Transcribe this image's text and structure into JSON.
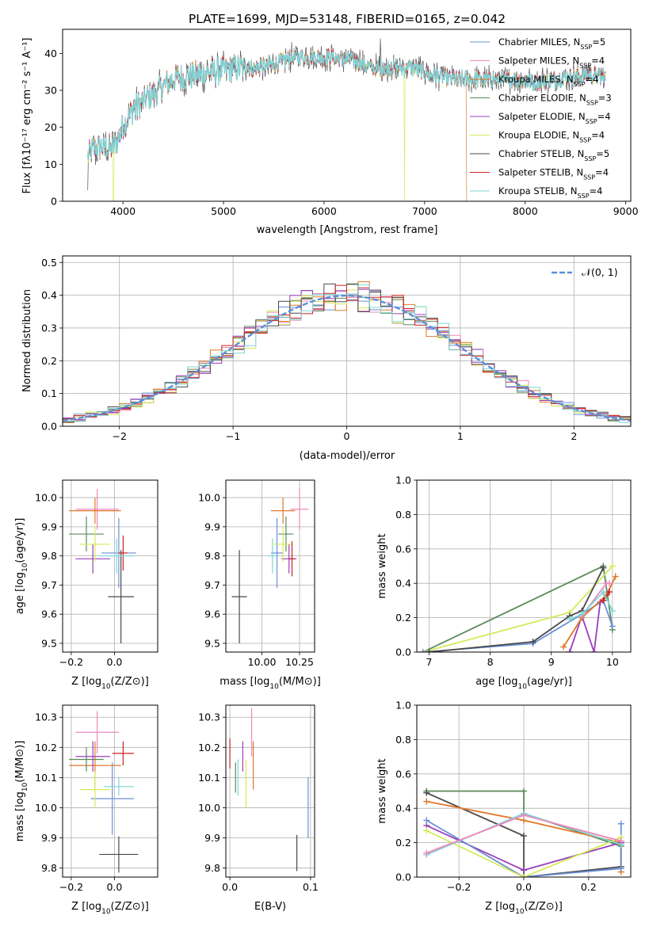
{
  "colors": {
    "chabrier_miles": "#6a8fd6",
    "salpeter_miles": "#ee88bb",
    "kroupa_miles": "#e0782a",
    "chabrier_elodie": "#5a8a5a",
    "salpeter_elodie": "#9a3fba",
    "kroupa_elodie": "#d4ea5a",
    "chabrier_stelib": "#4a4a4a",
    "salpeter_stelib": "#cc2222",
    "kroupa_stelib": "#7ed6d9",
    "normal_curve": "#5b8fd9"
  },
  "chart_data": [
    {
      "id": "spectrum",
      "type": "line",
      "title": "PLATE=1699, MJD=53148, FIBERID=0165, z=0.042",
      "xlabel": "wavelength [Angstrom, rest frame]",
      "ylabel": "Flux [fλ10⁻¹⁷ erg cm⁻² s⁻¹ A⁻¹]",
      "xlim": [
        3400,
        9050
      ],
      "ylim": [
        0,
        46.5
      ],
      "xticks": [
        4000,
        5000,
        6000,
        7000,
        8000,
        9000
      ],
      "yticks": [
        0,
        10,
        20,
        30,
        40
      ],
      "grid": false,
      "legend_position": "upper-right",
      "series": [
        {
          "name": "Chabrier MILES, N_SSP=5",
          "label_main": "Chabrier MILES, N",
          "label_sub": "SSP",
          "label_end": "=5"
        },
        {
          "name": "Salpeter MILES, N_SSP=4",
          "label_main": "Salpeter MILES, N",
          "label_sub": "SSP",
          "label_end": "=4"
        },
        {
          "name": "Kroupa MILES, N_SSP=4",
          "label_main": "Kroupa MILES, N",
          "label_sub": "SSP",
          "label_end": "=4"
        },
        {
          "name": "Chabrier ELODIE, N_SSP=3",
          "label_main": "Chabrier ELODIE, N",
          "label_sub": "SSP",
          "label_end": "=3"
        },
        {
          "name": "Salpeter ELODIE, N_SSP=4",
          "label_main": "Salpeter ELODIE, N",
          "label_sub": "SSP",
          "label_end": "=4"
        },
        {
          "name": "Kroupa ELODIE, N_SSP=4",
          "label_main": "Kroupa ELODIE, N",
          "label_sub": "SSP",
          "label_end": "=4"
        },
        {
          "name": "Chabrier STELIB, N_SSP=5",
          "label_main": "Chabrier STELIB, N",
          "label_sub": "SSP",
          "label_end": "=5"
        },
        {
          "name": "Salpeter STELIB, N_SSP=4",
          "label_main": "Salpeter STELIB, N",
          "label_sub": "SSP",
          "label_end": "=4"
        },
        {
          "name": "Kroupa STELIB, N_SSP=4",
          "label_main": "Kroupa STELIB, N",
          "label_sub": "SSP",
          "label_end": "=4"
        }
      ],
      "continuum": {
        "x": [
          3650,
          3700,
          3800,
          3900,
          4000,
          4100,
          4200,
          4300,
          4400,
          4500,
          4700,
          4900,
          5100,
          5300,
          5500,
          5700,
          5900,
          6100,
          6300,
          6500,
          6700,
          6900,
          7100,
          7300,
          7500,
          7700,
          7900,
          8100,
          8300,
          8500,
          8700,
          8800
        ],
        "y": [
          12,
          14,
          15,
          14,
          20,
          25,
          27,
          29,
          31,
          33,
          34,
          35,
          36,
          36,
          37,
          39,
          39,
          39,
          38,
          36,
          36,
          36,
          34,
          33,
          33,
          33,
          33,
          32,
          33,
          34,
          34,
          33
        ]
      },
      "dropouts": [
        {
          "x": 3905,
          "ymin": 0,
          "series": "kroupa_elodie"
        },
        {
          "x": 6800,
          "ymin": 0,
          "series": "kroupa_elodie"
        },
        {
          "x": 7420,
          "ymin": 0,
          "series": "kroupa_miles"
        }
      ]
    },
    {
      "id": "residuals",
      "type": "line",
      "xlabel": "(data-model)/error",
      "ylabel": "Normed distribution",
      "xlim": [
        -2.5,
        2.5
      ],
      "ylim": [
        0,
        0.52
      ],
      "xticks": [
        -2,
        -1,
        0,
        1,
        2
      ],
      "yticks": [
        0.0,
        0.1,
        0.2,
        0.3,
        0.4,
        0.5
      ],
      "grid": true,
      "legend_position": "upper-right",
      "legend": "𝒩(0, 1)",
      "bin_width": 0.1
    },
    {
      "id": "age_vs_z",
      "type": "scatter",
      "xlabel_main": "Z [log",
      "xlabel_sub": "10",
      "xlabel_end": "(Z/Z⊙)]",
      "ylabel_main": "age  [log",
      "ylabel_sub": "10",
      "ylabel_end": "(age/yr)]",
      "xlim": [
        -0.24,
        0.2
      ],
      "ylim": [
        9.47,
        10.06
      ],
      "xticks": [
        -0.2,
        0.0
      ],
      "yticks": [
        9.5,
        9.6,
        9.7,
        9.8,
        9.9,
        10.0
      ],
      "grid": true,
      "points": [
        {
          "series": "chabrier_miles",
          "x": 0.02,
          "xerr": 0.08,
          "y": 9.81,
          "yerr": 0.12
        },
        {
          "series": "salpeter_miles",
          "x": -0.08,
          "xerr": 0.1,
          "y": 9.96,
          "yerr": 0.07
        },
        {
          "series": "kroupa_miles",
          "x": -0.09,
          "xerr": 0.12,
          "y": 9.955,
          "yerr": 0.045
        },
        {
          "series": "chabrier_elodie",
          "x": -0.13,
          "xerr": 0.08,
          "y": 9.875,
          "yerr": 0.06
        },
        {
          "series": "salpeter_elodie",
          "x": -0.1,
          "xerr": 0.08,
          "y": 9.79,
          "yerr": 0.05
        },
        {
          "series": "kroupa_elodie",
          "x": -0.09,
          "xerr": 0.07,
          "y": 9.84,
          "yerr": 0.06
        },
        {
          "series": "chabrier_stelib",
          "x": 0.03,
          "xerr": 0.06,
          "y": 9.66,
          "yerr": 0.16
        },
        {
          "series": "salpeter_stelib",
          "x": 0.04,
          "xerr": 0.02,
          "y": 9.81,
          "yerr": 0.06
        },
        {
          "series": "kroupa_stelib",
          "x": 0.01,
          "xerr": 0.08,
          "y": 9.8,
          "yerr": 0.06
        }
      ]
    },
    {
      "id": "age_vs_mass",
      "type": "scatter",
      "xlabel_main": "mass [log",
      "xlabel_sub": "10",
      "xlabel_end": "(M/M⊙)]",
      "xlim": [
        9.76,
        10.35
      ],
      "ylim": [
        9.47,
        10.06
      ],
      "xticks": [
        10.0,
        10.25
      ],
      "yticks": [
        9.5,
        9.6,
        9.7,
        9.8,
        9.9,
        10.0
      ],
      "grid": true,
      "points": [
        {
          "series": "chabrier_miles",
          "x": 10.1,
          "xerr": 0.04,
          "y": 9.81,
          "yerr": 0.12
        },
        {
          "series": "salpeter_miles",
          "x": 10.25,
          "xerr": 0.06,
          "y": 9.96,
          "yerr": 0.07
        },
        {
          "series": "kroupa_miles",
          "x": 10.14,
          "xerr": 0.08,
          "y": 9.955,
          "yerr": 0.045
        },
        {
          "series": "chabrier_elodie",
          "x": 10.16,
          "xerr": 0.05,
          "y": 9.875,
          "yerr": 0.06
        },
        {
          "series": "salpeter_elodie",
          "x": 10.18,
          "xerr": 0.05,
          "y": 9.79,
          "yerr": 0.05
        },
        {
          "series": "kroupa_elodie",
          "x": 10.14,
          "xerr": 0.06,
          "y": 9.84,
          "yerr": 0.06
        },
        {
          "series": "chabrier_stelib",
          "x": 9.85,
          "xerr": 0.05,
          "y": 9.66,
          "yerr": 0.16
        },
        {
          "series": "salpeter_stelib",
          "x": 10.2,
          "xerr": 0.02,
          "y": 9.79,
          "yerr": 0.06
        },
        {
          "series": "kroupa_stelib",
          "x": 10.07,
          "xerr": 0.03,
          "y": 9.8,
          "yerr": 0.06
        }
      ]
    },
    {
      "id": "massweight_vs_age",
      "type": "line",
      "xlabel_main": "age  [log",
      "xlabel_sub": "10",
      "xlabel_end": "(age/yr)]",
      "ylabel": "mass weight",
      "xlim": [
        6.8,
        10.3
      ],
      "ylim": [
        0,
        1.0
      ],
      "xticks": [
        7,
        8,
        9,
        10
      ],
      "yticks": [
        0.0,
        0.2,
        0.4,
        0.6,
        0.8,
        1.0
      ],
      "grid": true,
      "series": [
        {
          "series": "chabrier_elodie",
          "x": [
            6.9,
            9.85,
            10.0
          ],
          "y": [
            0.0,
            0.5,
            0.13
          ]
        },
        {
          "series": "kroupa_elodie",
          "x": [
            6.9,
            9.3,
            10.0
          ],
          "y": [
            0.0,
            0.23,
            0.5
          ]
        },
        {
          "series": "chabrier_miles",
          "x": [
            6.9,
            8.7,
            9.5,
            9.85,
            10.0
          ],
          "y": [
            0.0,
            0.05,
            0.22,
            0.3,
            0.15
          ]
        },
        {
          "series": "chabrier_stelib",
          "x": [
            7.0,
            8.7,
            9.3,
            9.5,
            9.85
          ],
          "y": [
            0.0,
            0.06,
            0.21,
            0.24,
            0.49
          ]
        },
        {
          "series": "salpeter_elodie",
          "x": [
            9.3,
            9.5,
            9.7,
            9.8,
            9.9
          ],
          "y": [
            0.0,
            0.21,
            0.0,
            0.29,
            0.33
          ]
        },
        {
          "series": "kroupa_miles",
          "x": [
            9.2,
            9.5,
            9.9,
            10.05
          ],
          "y": [
            0.03,
            0.2,
            0.33,
            0.44
          ]
        },
        {
          "series": "salpeter_miles",
          "x": [
            9.5,
            9.9,
            9.95
          ],
          "y": [
            0.21,
            0.4,
            0.4
          ]
        },
        {
          "series": "salpeter_stelib",
          "x": [
            9.85,
            9.95
          ],
          "y": [
            0.3,
            0.35
          ]
        },
        {
          "series": "kroupa_stelib",
          "x": [
            9.3,
            9.5,
            9.85,
            10.0
          ],
          "y": [
            0.19,
            0.22,
            0.35,
            0.24
          ]
        }
      ]
    },
    {
      "id": "mass_vs_z",
      "type": "scatter",
      "xlabel_main": "Z [log",
      "xlabel_sub": "10",
      "xlabel_end": "(Z/Z⊙)]",
      "ylabel_main": "mass [log",
      "ylabel_sub": "10",
      "ylabel_end": "(M/M⊙)]",
      "xlim": [
        -0.24,
        0.2
      ],
      "ylim": [
        9.77,
        10.34
      ],
      "xticks": [
        -0.2,
        0.0
      ],
      "yticks": [
        9.8,
        9.9,
        10.0,
        10.1,
        10.2,
        10.3
      ],
      "grid": true,
      "points": [
        {
          "series": "chabrier_miles",
          "x": -0.01,
          "xerr": 0.1,
          "y": 10.03,
          "yerr": 0.12
        },
        {
          "series": "salpeter_miles",
          "x": -0.08,
          "xerr": 0.1,
          "y": 10.25,
          "yerr": 0.07
        },
        {
          "series": "kroupa_miles",
          "x": -0.09,
          "xerr": 0.12,
          "y": 10.14,
          "yerr": 0.08
        },
        {
          "series": "chabrier_elodie",
          "x": -0.13,
          "xerr": 0.08,
          "y": 10.16,
          "yerr": 0.04
        },
        {
          "series": "salpeter_elodie",
          "x": -0.1,
          "xerr": 0.08,
          "y": 10.17,
          "yerr": 0.05
        },
        {
          "series": "kroupa_elodie",
          "x": -0.09,
          "xerr": 0.07,
          "y": 10.06,
          "yerr": 0.06
        },
        {
          "series": "chabrier_stelib",
          "x": 0.02,
          "xerr": 0.09,
          "y": 9.845,
          "yerr": 0.06
        },
        {
          "series": "salpeter_stelib",
          "x": 0.04,
          "xerr": 0.05,
          "y": 10.18,
          "yerr": 0.04
        },
        {
          "series": "kroupa_stelib",
          "x": 0.02,
          "xerr": 0.07,
          "y": 10.07,
          "yerr": 0.03
        }
      ]
    },
    {
      "id": "mass_vs_ebv",
      "type": "scatter",
      "xlabel": "E(B-V)",
      "xlim": [
        -0.005,
        0.105
      ],
      "ylim": [
        9.77,
        10.34
      ],
      "xticks": [
        0.0,
        0.1
      ],
      "yticks": [
        9.8,
        9.9,
        10.0,
        10.1,
        10.2,
        10.3
      ],
      "grid": true,
      "points": [
        {
          "series": "chabrier_miles",
          "x": 0.097,
          "y": 10.0,
          "yerr": 0.1
        },
        {
          "series": "salpeter_miles",
          "x": 0.027,
          "y": 10.25,
          "yerr": 0.08
        },
        {
          "series": "kroupa_miles",
          "x": 0.029,
          "y": 10.14,
          "yerr": 0.08
        },
        {
          "series": "chabrier_elodie",
          "x": 0.007,
          "y": 10.1,
          "yerr": 0.05
        },
        {
          "series": "salpeter_elodie",
          "x": 0.016,
          "y": 10.17,
          "yerr": 0.05
        },
        {
          "series": "kroupa_elodie",
          "x": 0.02,
          "y": 10.08,
          "yerr": 0.08
        },
        {
          "series": "chabrier_stelib",
          "x": 0.083,
          "y": 9.85,
          "yerr": 0.06
        },
        {
          "series": "salpeter_stelib",
          "x": 0.0,
          "y": 10.18,
          "yerr": 0.05
        },
        {
          "series": "kroupa_stelib",
          "x": 0.01,
          "y": 10.1,
          "yerr": 0.06
        }
      ]
    },
    {
      "id": "massweight_vs_z",
      "type": "line",
      "xlabel_main": "Z [log",
      "xlabel_sub": "10",
      "xlabel_end": "(Z/Z⊙)]",
      "ylabel": "mass weight",
      "xlim": [
        -0.33,
        0.33
      ],
      "ylim": [
        0,
        1.0
      ],
      "xticks": [
        -0.2,
        0.0,
        0.2
      ],
      "yticks": [
        0.0,
        0.2,
        0.4,
        0.6,
        0.8,
        1.0
      ],
      "grid": true,
      "series": [
        {
          "series": "chabrier_elodie",
          "x": [
            -0.3,
            0.0,
            0.0,
            0.3
          ],
          "y": [
            0.5,
            0.5,
            0.37,
            0.18
          ]
        },
        {
          "series": "chabrier_stelib",
          "x": [
            -0.3,
            0.0,
            0.0,
            0.3,
            0.3
          ],
          "y": [
            0.49,
            0.24,
            0.0,
            0.06,
            0.2
          ]
        },
        {
          "series": "kroupa_miles",
          "x": [
            -0.3,
            0.0,
            0.3,
            0.3
          ],
          "y": [
            0.44,
            0.33,
            0.2,
            0.03
          ]
        },
        {
          "series": "salpeter_elodie",
          "x": [
            -0.3,
            0.0,
            0.3
          ],
          "y": [
            0.3,
            0.04,
            0.2
          ]
        },
        {
          "series": "chabrier_miles",
          "x": [
            -0.3,
            0.0,
            0.3,
            0.3
          ],
          "y": [
            0.33,
            0.0,
            0.05,
            0.31
          ]
        },
        {
          "series": "kroupa_elodie",
          "x": [
            -0.3,
            0.0,
            0.3
          ],
          "y": [
            0.27,
            0.0,
            0.23
          ]
        },
        {
          "series": "kroupa_stelib",
          "x": [
            -0.3,
            0.0,
            0.3
          ],
          "y": [
            0.13,
            0.37,
            0.19
          ]
        },
        {
          "series": "salpeter_miles",
          "x": [
            -0.3,
            0.0,
            0.3
          ],
          "y": [
            0.14,
            0.36,
            0.21
          ]
        }
      ]
    }
  ]
}
